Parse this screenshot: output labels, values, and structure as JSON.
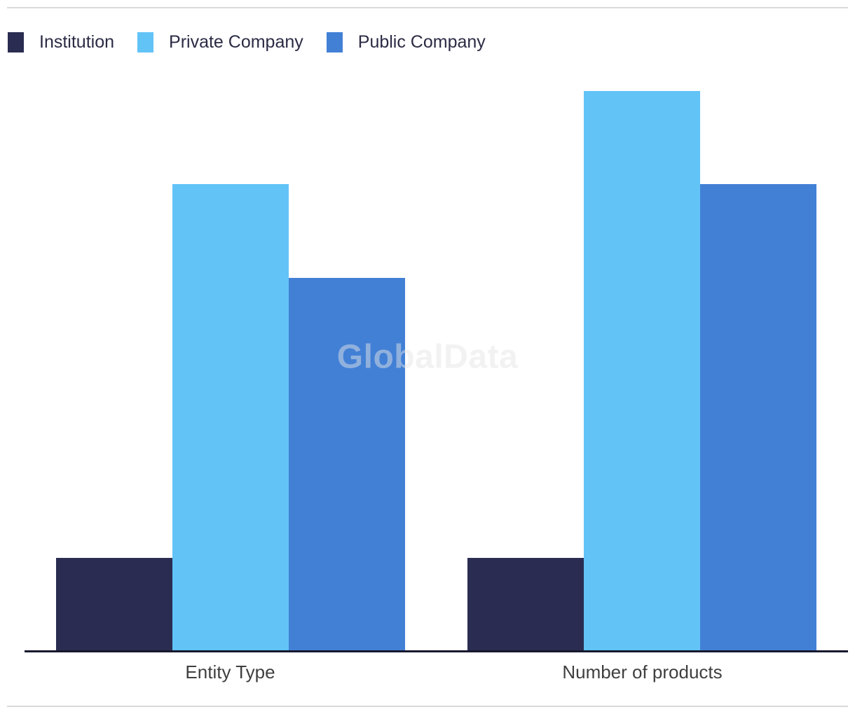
{
  "watermark": {
    "text": "GlobalData",
    "color": "#e6e6e6"
  },
  "legend": {
    "position": "top-left",
    "items": [
      {
        "label": "Institution",
        "color": "#2a2c51"
      },
      {
        "label": "Private Company",
        "color": "#62c3f7"
      },
      {
        "label": "Public Company",
        "color": "#4280d6"
      }
    ]
  },
  "chart_data": {
    "type": "bar",
    "title": "",
    "categories": [
      "Entity Type",
      "Number of products"
    ],
    "series": [
      {
        "name": "Institution",
        "color": "#2a2c51",
        "values": [
          2,
          2
        ]
      },
      {
        "name": "Private Company",
        "color": "#62c3f7",
        "values": [
          10,
          12
        ]
      },
      {
        "name": "Public Company",
        "color": "#4280d6",
        "values": [
          8,
          10
        ]
      }
    ],
    "ylim": [
      0,
      12
    ],
    "grid": false,
    "y_axis_labels_visible": false,
    "legend_position": "top-left",
    "axis_line_color": "#16192e",
    "category_label_color": "#3f3f3f",
    "rule_color": "#d9d9d9"
  }
}
